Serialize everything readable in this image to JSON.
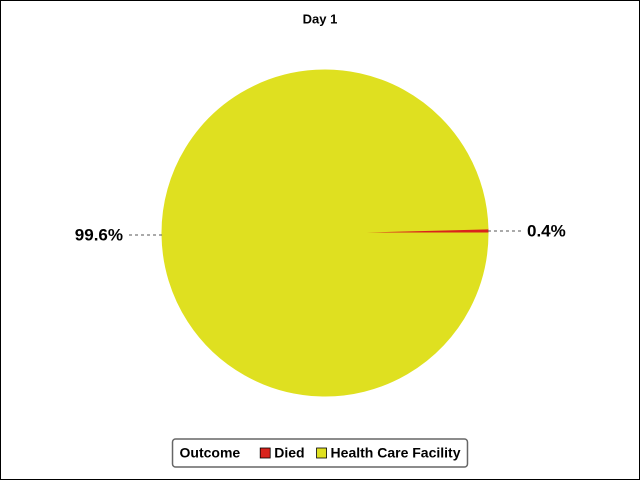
{
  "chart_data": {
    "type": "pie",
    "title": "Day 1",
    "categories": [
      "Died",
      "Health Care Facility"
    ],
    "values": [
      0.4,
      99.6
    ],
    "value_labels": [
      "0.4%",
      "99.6%"
    ],
    "colors": [
      "#d9231c",
      "#dfe020"
    ],
    "legend_title": "Outcome"
  }
}
